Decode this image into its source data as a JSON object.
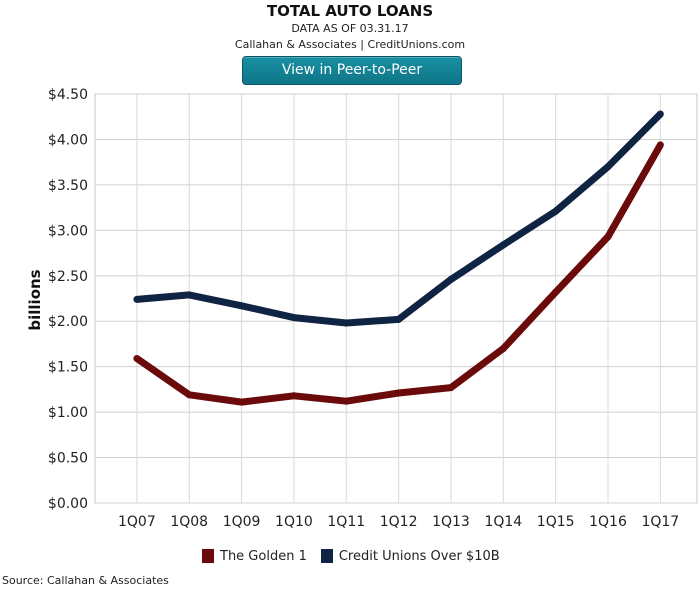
{
  "header": {
    "title": "TOTAL AUTO LOANS",
    "date_line": "DATA AS OF 03.31.17",
    "credit_line": "Callahan & Associates | CreditUnions.com",
    "button_label": "View in Peer-to-Peer"
  },
  "colors": {
    "golden1": "#6b0a0a",
    "over10b": "#0f2442",
    "button": "#127f92"
  },
  "chart_data": {
    "type": "line",
    "title": "TOTAL AUTO LOANS",
    "xlabel": "",
    "ylabel": "billions",
    "categories": [
      "1Q07",
      "1Q08",
      "1Q09",
      "1Q10",
      "1Q11",
      "1Q12",
      "1Q13",
      "1Q14",
      "1Q15",
      "1Q16",
      "1Q17"
    ],
    "yticks": [
      "$0.00",
      "$0.50",
      "$1.00",
      "$1.50",
      "$2.00",
      "$2.50",
      "$3.00",
      "$3.50",
      "$4.00",
      "$4.50"
    ],
    "ylim": [
      0,
      4.5
    ],
    "grid": true,
    "legend_position": "bottom",
    "series": [
      {
        "name": "The Golden 1",
        "color": "#6b0a0a",
        "values": [
          1.59,
          1.19,
          1.11,
          1.18,
          1.12,
          1.21,
          1.27,
          1.7,
          2.32,
          2.93,
          3.94
        ]
      },
      {
        "name": "Credit Unions Over $10B",
        "color": "#0f2442",
        "values": [
          2.24,
          2.29,
          2.17,
          2.04,
          1.98,
          2.02,
          2.46,
          2.84,
          3.21,
          3.7,
          4.28
        ]
      }
    ]
  },
  "footer": {
    "source": "Source: Callahan & Associates"
  }
}
